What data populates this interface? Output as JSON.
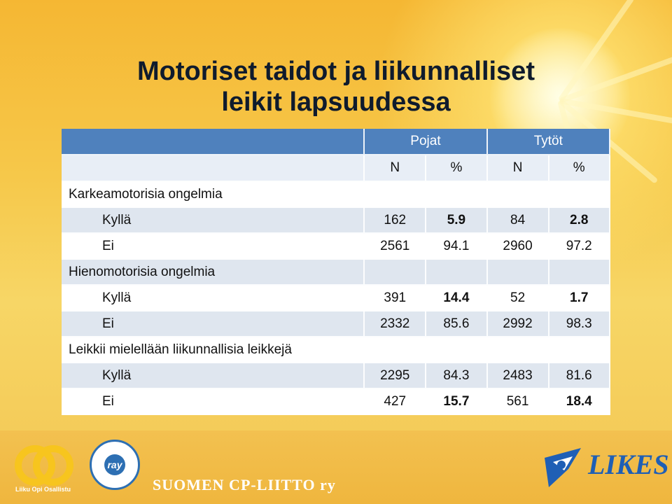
{
  "title": {
    "line1": "Motoriset taidot ja liikunnalliset",
    "line2": "leikit lapsuudessa"
  },
  "table": {
    "groups": {
      "boys": "Pojat",
      "girls": "Tytöt"
    },
    "subheaders": {
      "n1": "N",
      "p1": "%",
      "n2": "N",
      "p2": "%"
    },
    "sections": [
      {
        "label": "Karkeamotorisia ongelmia",
        "rows": [
          {
            "label": "Kyllä",
            "n1": "162",
            "p1": "5.9",
            "n2": "84",
            "p2": "2.8"
          },
          {
            "label": "Ei",
            "n1": "2561",
            "p1": "94.1",
            "n2": "2960",
            "p2": "97.2"
          }
        ]
      },
      {
        "label": "Hienomotorisia ongelmia",
        "rows": [
          {
            "label": "Kyllä",
            "n1": "391",
            "p1": "14.4",
            "n2": "52",
            "p2": "1.7"
          },
          {
            "label": "Ei",
            "n1": "2332",
            "p1": "85.6",
            "n2": "2992",
            "p2": "98.3"
          }
        ]
      },
      {
        "label": "Leikkii mielellään liikunnallisia leikkejä",
        "rows": [
          {
            "label": "Kyllä",
            "n1": "2295",
            "p1": "84.3",
            "n2": "2483",
            "p2": "81.6"
          },
          {
            "label": "Ei",
            "n1": "427",
            "p1": "15.7",
            "n2": "561",
            "p2": "18.4"
          }
        ]
      }
    ]
  },
  "footer": {
    "logo_left_text": "Liiku Opi Osallistu",
    "ray_text": "ray",
    "org_text": "SUOMEN CP-LIITTO ry",
    "likes_text": "LIKES"
  },
  "colors": {
    "header": "#4f81bd",
    "title": "#0f1b2d",
    "likes": "#1f5fb5"
  }
}
